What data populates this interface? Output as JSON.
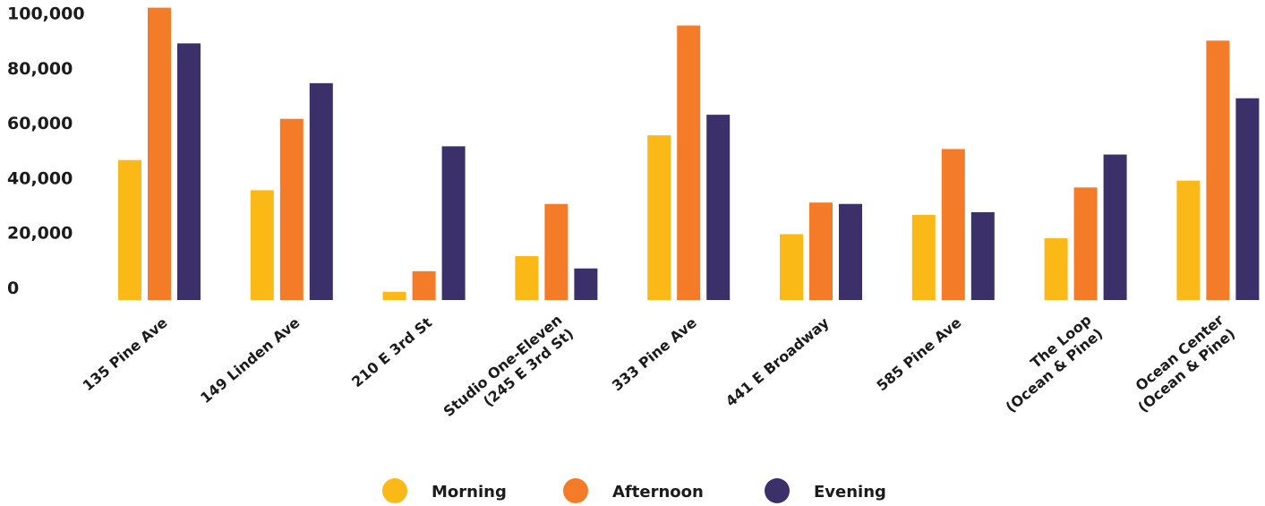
{
  "chart_data": {
    "type": "bar",
    "title": "",
    "xlabel": "",
    "ylabel": "",
    "ylim": [
      0,
      105000
    ],
    "yticks": [
      "0",
      "20,000",
      "40,000",
      "60,000",
      "80,000",
      "100,000"
    ],
    "ytick_values": [
      0,
      20000,
      40000,
      60000,
      80000,
      100000
    ],
    "categories": [
      [
        "135 Pine Ave"
      ],
      [
        "149 Linden Ave"
      ],
      [
        "210 E 3rd St"
      ],
      [
        "Studio One-Eleven",
        "(245 E 3rd St)"
      ],
      [
        "333 Pine Ave"
      ],
      [
        "441 E Broadway"
      ],
      [
        "585 Pine Ave"
      ],
      [
        "The Loop",
        "(Ocean & Pine)"
      ],
      [
        "Ocean Center",
        "(Ocean & Pine)"
      ]
    ],
    "series": [
      {
        "name": "Morning",
        "color": "#FBB918",
        "values": [
          51000,
          40000,
          3000,
          16000,
          60000,
          24000,
          31000,
          22500,
          43500
        ]
      },
      {
        "name": "Afternoon",
        "color": "#F47C29",
        "values": [
          106500,
          66000,
          10500,
          35000,
          100000,
          35500,
          55000,
          41000,
          94500
        ]
      },
      {
        "name": "Evening",
        "color": "#3C306B",
        "values": [
          93500,
          79000,
          56000,
          11500,
          67500,
          35000,
          32000,
          53000,
          73500
        ]
      }
    ],
    "grid": false,
    "legend_position": "bottom"
  }
}
